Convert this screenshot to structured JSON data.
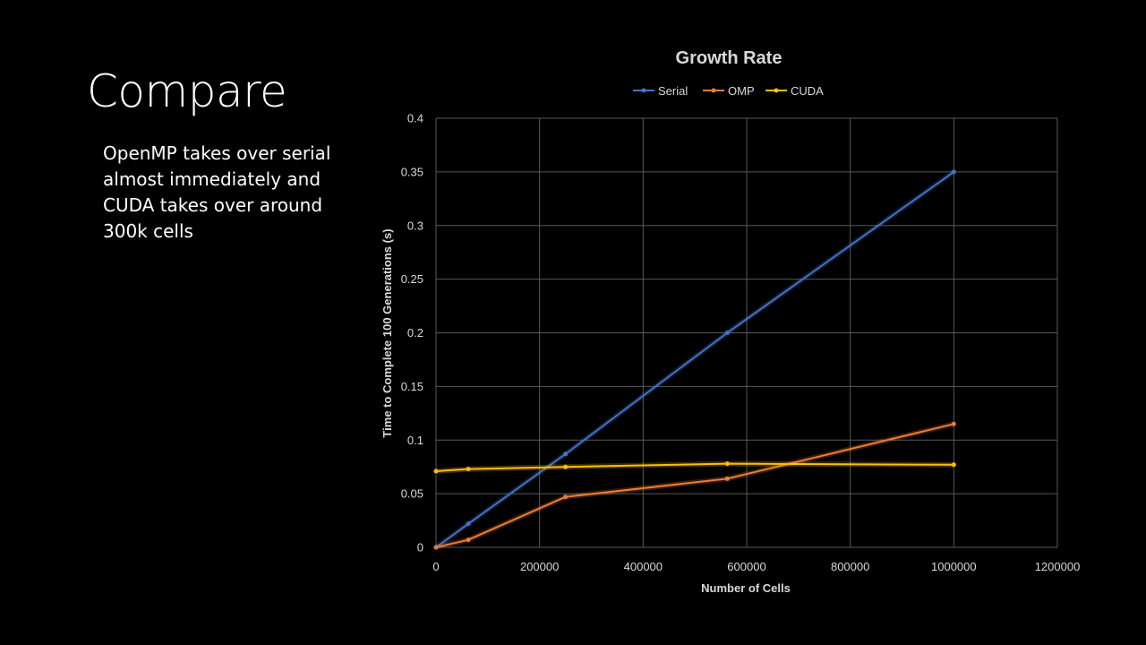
{
  "slide": {
    "title": "Compare",
    "body": "OpenMP takes over serial almost immediately and CUDA takes over around 300k cells"
  },
  "chart_data": {
    "type": "line",
    "title": "Growth Rate",
    "xlabel": "Number of Cells",
    "ylabel": "Time to Complete 100 Generations (s)",
    "xlim": [
      0,
      1200000
    ],
    "ylim": [
      0,
      0.4
    ],
    "xticks": [
      "0",
      "200000",
      "400000",
      "600000",
      "800000",
      "1000000",
      "1200000"
    ],
    "yticks": [
      "0",
      "0.05",
      "0.1",
      "0.15",
      "0.2",
      "0.25",
      "0.3",
      "0.35",
      "0.4"
    ],
    "grid": true,
    "legend_position": "top",
    "series": [
      {
        "name": "Serial",
        "color": "#4472c4",
        "x": [
          0,
          62500,
          250000,
          562500,
          1000000
        ],
        "y": [
          0,
          0.022,
          0.087,
          0.2,
          0.35
        ]
      },
      {
        "name": "OMP",
        "color": "#ed7d31",
        "x": [
          0,
          62500,
          250000,
          562500,
          1000000
        ],
        "y": [
          0,
          0.007,
          0.047,
          0.064,
          0.115
        ]
      },
      {
        "name": "CUDA",
        "color": "#ffc000",
        "x": [
          0,
          62500,
          250000,
          562500,
          1000000
        ],
        "y": [
          0.071,
          0.073,
          0.075,
          0.078,
          0.077
        ]
      }
    ]
  }
}
